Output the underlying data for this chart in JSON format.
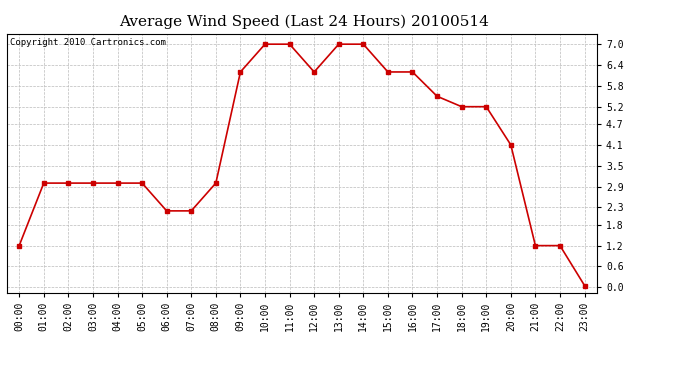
{
  "title": "Average Wind Speed (Last 24 Hours) 20100514",
  "copyright": "Copyright 2010 Cartronics.com",
  "hours": [
    "00:00",
    "01:00",
    "02:00",
    "03:00",
    "04:00",
    "05:00",
    "06:00",
    "07:00",
    "08:00",
    "09:00",
    "10:00",
    "11:00",
    "12:00",
    "13:00",
    "14:00",
    "15:00",
    "16:00",
    "17:00",
    "18:00",
    "19:00",
    "20:00",
    "21:00",
    "22:00",
    "23:00"
  ],
  "values": [
    1.2,
    3.0,
    3.0,
    3.0,
    3.0,
    3.0,
    2.2,
    2.2,
    3.0,
    6.2,
    7.0,
    7.0,
    6.2,
    7.0,
    7.0,
    6.2,
    6.2,
    5.5,
    5.2,
    5.2,
    4.1,
    1.2,
    1.2,
    0.05
  ],
  "yticks": [
    0.0,
    0.6,
    1.2,
    1.8,
    2.3,
    2.9,
    3.5,
    4.1,
    4.7,
    5.2,
    5.8,
    6.4,
    7.0
  ],
  "line_color": "#cc0000",
  "marker": "s",
  "marker_size": 2.5,
  "line_width": 1.2,
  "bg_color": "#ffffff",
  "plot_bg_color": "#ffffff",
  "grid_color": "#bbbbbb",
  "title_fontsize": 11,
  "copyright_fontsize": 6.5,
  "tick_fontsize": 7,
  "ylim": [
    -0.15,
    7.3
  ],
  "xlim": [
    -0.5,
    23.5
  ]
}
